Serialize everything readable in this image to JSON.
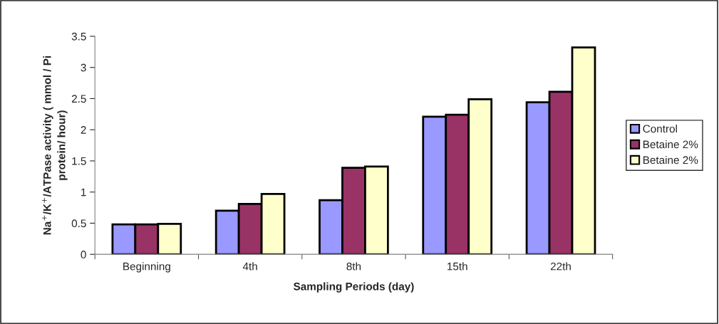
{
  "chart_data": {
    "type": "bar",
    "xlabel": "Sampling Periods (day)",
    "ylabel": "Na$^{+}$/K$^{+}$/ATPase activity ( mmol / Pi\nprotein/ hour)",
    "categories": [
      "Beginning",
      "4th",
      "8th",
      "15th",
      "22th"
    ],
    "series": [
      {
        "name": "Control",
        "color": "#9999ff",
        "values": [
          0.48,
          0.7,
          0.87,
          2.21,
          2.44
        ]
      },
      {
        "name": "Betaine 2%",
        "color": "#993366",
        "values": [
          0.48,
          0.81,
          1.39,
          2.24,
          2.61
        ]
      },
      {
        "name": "Betaine 2%",
        "color": "#ffffcc",
        "values": [
          0.49,
          0.97,
          1.41,
          2.49,
          3.32
        ]
      }
    ],
    "ylim": [
      0,
      3.5
    ],
    "yticks": [
      0,
      0.5,
      1,
      1.5,
      2,
      2.5,
      3,
      3.5
    ],
    "grid": false,
    "legend": "right"
  }
}
